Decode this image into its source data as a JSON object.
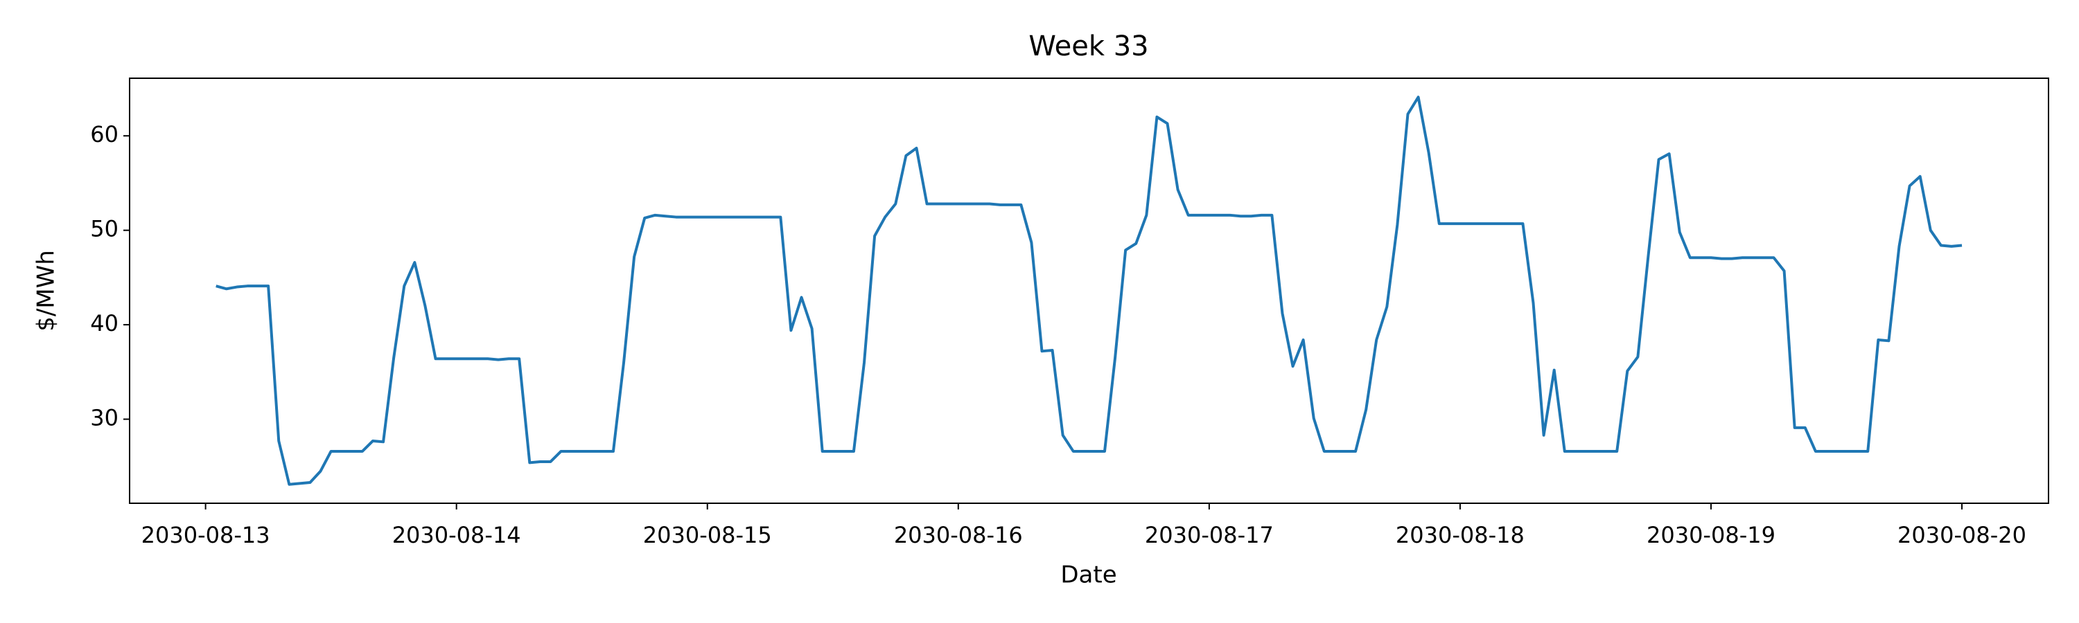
{
  "chart_data": {
    "type": "line",
    "title": "Week 33",
    "xlabel": "Date",
    "ylabel": "$/MWh",
    "x": [
      "2030-08-13T01:00",
      "2030-08-13T02:00",
      "2030-08-13T03:00",
      "2030-08-13T04:00",
      "2030-08-13T05:00",
      "2030-08-13T06:00",
      "2030-08-13T07:00",
      "2030-08-13T08:00",
      "2030-08-13T09:00",
      "2030-08-13T10:00",
      "2030-08-13T11:00",
      "2030-08-13T12:00",
      "2030-08-13T13:00",
      "2030-08-13T14:00",
      "2030-08-13T15:00",
      "2030-08-13T16:00",
      "2030-08-13T17:00",
      "2030-08-13T18:00",
      "2030-08-13T19:00",
      "2030-08-13T20:00",
      "2030-08-13T21:00",
      "2030-08-13T22:00",
      "2030-08-13T23:00",
      "2030-08-14T00:00",
      "2030-08-14T01:00",
      "2030-08-14T02:00",
      "2030-08-14T03:00",
      "2030-08-14T04:00",
      "2030-08-14T05:00",
      "2030-08-14T06:00",
      "2030-08-14T07:00",
      "2030-08-14T08:00",
      "2030-08-14T09:00",
      "2030-08-14T10:00",
      "2030-08-14T11:00",
      "2030-08-14T12:00",
      "2030-08-14T13:00",
      "2030-08-14T14:00",
      "2030-08-14T15:00",
      "2030-08-14T16:00",
      "2030-08-14T17:00",
      "2030-08-14T18:00",
      "2030-08-14T19:00",
      "2030-08-14T20:00",
      "2030-08-14T21:00",
      "2030-08-14T22:00",
      "2030-08-14T23:00",
      "2030-08-15T00:00",
      "2030-08-15T01:00",
      "2030-08-15T02:00",
      "2030-08-15T03:00",
      "2030-08-15T04:00",
      "2030-08-15T05:00",
      "2030-08-15T06:00",
      "2030-08-15T07:00",
      "2030-08-15T08:00",
      "2030-08-15T09:00",
      "2030-08-15T10:00",
      "2030-08-15T11:00",
      "2030-08-15T12:00",
      "2030-08-15T13:00",
      "2030-08-15T14:00",
      "2030-08-15T15:00",
      "2030-08-15T16:00",
      "2030-08-15T17:00",
      "2030-08-15T18:00",
      "2030-08-15T19:00",
      "2030-08-15T20:00",
      "2030-08-15T21:00",
      "2030-08-15T22:00",
      "2030-08-15T23:00",
      "2030-08-16T00:00",
      "2030-08-16T01:00",
      "2030-08-16T02:00",
      "2030-08-16T03:00",
      "2030-08-16T04:00",
      "2030-08-16T05:00",
      "2030-08-16T06:00",
      "2030-08-16T07:00",
      "2030-08-16T08:00",
      "2030-08-16T09:00",
      "2030-08-16T10:00",
      "2030-08-16T11:00",
      "2030-08-16T12:00",
      "2030-08-16T13:00",
      "2030-08-16T14:00",
      "2030-08-16T15:00",
      "2030-08-16T16:00",
      "2030-08-16T17:00",
      "2030-08-16T18:00",
      "2030-08-16T19:00",
      "2030-08-16T20:00",
      "2030-08-16T21:00",
      "2030-08-16T22:00",
      "2030-08-16T23:00",
      "2030-08-17T00:00",
      "2030-08-17T01:00",
      "2030-08-17T02:00",
      "2030-08-17T03:00",
      "2030-08-17T04:00",
      "2030-08-17T05:00",
      "2030-08-17T06:00",
      "2030-08-17T07:00",
      "2030-08-17T08:00",
      "2030-08-17T09:00",
      "2030-08-17T10:00",
      "2030-08-17T11:00",
      "2030-08-17T12:00",
      "2030-08-17T13:00",
      "2030-08-17T14:00",
      "2030-08-17T15:00",
      "2030-08-17T16:00",
      "2030-08-17T17:00",
      "2030-08-17T18:00",
      "2030-08-17T19:00",
      "2030-08-17T20:00",
      "2030-08-17T21:00",
      "2030-08-17T22:00",
      "2030-08-17T23:00",
      "2030-08-18T00:00",
      "2030-08-18T01:00",
      "2030-08-18T02:00",
      "2030-08-18T03:00",
      "2030-08-18T04:00",
      "2030-08-18T05:00",
      "2030-08-18T06:00",
      "2030-08-18T07:00",
      "2030-08-18T08:00",
      "2030-08-18T09:00",
      "2030-08-18T10:00",
      "2030-08-18T11:00",
      "2030-08-18T12:00",
      "2030-08-18T13:00",
      "2030-08-18T14:00",
      "2030-08-18T15:00",
      "2030-08-18T16:00",
      "2030-08-18T17:00",
      "2030-08-18T18:00",
      "2030-08-18T19:00",
      "2030-08-18T20:00",
      "2030-08-18T21:00",
      "2030-08-18T22:00",
      "2030-08-18T23:00",
      "2030-08-19T00:00",
      "2030-08-19T01:00",
      "2030-08-19T02:00",
      "2030-08-19T03:00",
      "2030-08-19T04:00",
      "2030-08-19T05:00",
      "2030-08-19T06:00",
      "2030-08-19T07:00",
      "2030-08-19T08:00",
      "2030-08-19T09:00",
      "2030-08-19T10:00",
      "2030-08-19T11:00",
      "2030-08-19T12:00",
      "2030-08-19T13:00",
      "2030-08-19T14:00",
      "2030-08-19T15:00",
      "2030-08-19T16:00",
      "2030-08-19T17:00",
      "2030-08-19T18:00",
      "2030-08-19T19:00",
      "2030-08-19T20:00",
      "2030-08-19T21:00",
      "2030-08-19T22:00",
      "2030-08-19T23:00",
      "2030-08-20T00:00"
    ],
    "values": [
      44.1,
      43.8,
      44.0,
      44.1,
      44.1,
      44.1,
      27.7,
      23.1,
      23.2,
      23.3,
      24.5,
      26.6,
      26.6,
      26.6,
      26.6,
      27.7,
      27.6,
      36.5,
      44.1,
      46.6,
      42.0,
      36.4,
      36.4,
      36.4,
      36.4,
      36.4,
      36.4,
      36.3,
      36.4,
      36.4,
      25.4,
      25.5,
      25.5,
      26.6,
      26.6,
      26.6,
      26.6,
      26.6,
      26.6,
      36.0,
      47.2,
      51.3,
      51.6,
      51.5,
      51.4,
      51.4,
      51.4,
      51.4,
      51.4,
      51.4,
      51.4,
      51.4,
      51.4,
      51.4,
      51.4,
      39.4,
      42.9,
      39.6,
      26.6,
      26.6,
      26.6,
      26.6,
      36.0,
      49.4,
      51.4,
      52.8,
      57.9,
      58.7,
      52.8,
      52.8,
      52.8,
      52.8,
      52.8,
      52.8,
      52.8,
      52.7,
      52.7,
      52.7,
      48.7,
      37.2,
      37.3,
      28.3,
      26.6,
      26.6,
      26.6,
      26.6,
      36.5,
      47.9,
      48.6,
      51.6,
      62.0,
      61.3,
      54.3,
      51.6,
      51.6,
      51.6,
      51.6,
      51.6,
      51.5,
      51.5,
      51.6,
      51.6,
      41.2,
      35.6,
      38.4,
      30.1,
      26.6,
      26.6,
      26.6,
      26.6,
      31.0,
      38.4,
      41.9,
      50.6,
      62.3,
      64.1,
      58.2,
      50.7,
      50.7,
      50.7,
      50.7,
      50.7,
      50.7,
      50.7,
      50.7,
      50.7,
      42.3,
      28.3,
      35.2,
      26.6,
      26.6,
      26.6,
      26.6,
      26.6,
      26.6,
      35.1,
      36.6,
      47.3,
      57.5,
      58.1,
      49.8,
      47.1,
      47.1,
      47.1,
      47.0,
      47.0,
      47.1,
      47.1,
      47.1,
      47.1,
      45.7,
      29.1,
      29.1,
      26.6,
      26.6,
      26.6,
      26.6,
      26.6,
      26.6,
      38.4,
      38.3,
      48.3,
      54.7,
      55.7,
      50.0,
      48.4,
      48.3,
      48.4
    ],
    "color": "#1f77b4",
    "xlim": [
      "2030-08-12T16:44",
      "2030-08-20T08:17"
    ],
    "xticks": [
      "2030-08-13",
      "2030-08-14",
      "2030-08-15",
      "2030-08-16",
      "2030-08-17",
      "2030-08-18",
      "2030-08-19",
      "2030-08-20"
    ],
    "ylim": [
      21.1,
      66.1
    ],
    "yticks": [
      30,
      40,
      50,
      60
    ],
    "grid": false
  }
}
